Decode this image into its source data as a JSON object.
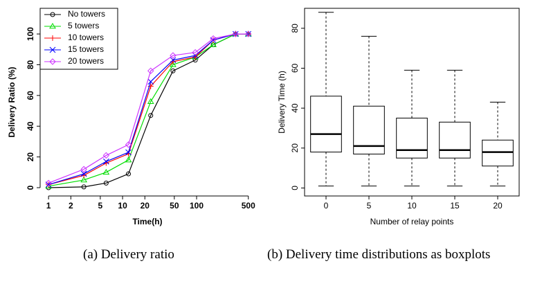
{
  "chart_data": [
    {
      "type": "line",
      "x_label": "Time(h)",
      "y_label": "Delivery Ratio (%)",
      "caption": "(a) Delivery ratio",
      "x_log": true,
      "xlim": [
        0.77,
        610
      ],
      "ylim": [
        -5.4,
        116.7
      ],
      "xticks": [
        1,
        2,
        5,
        10,
        20,
        50,
        100,
        500
      ],
      "yticks": [
        0,
        20,
        40,
        60,
        80,
        100
      ],
      "legend": "top-left",
      "x": [
        1,
        3,
        6,
        12,
        24,
        48,
        96,
        168,
        336,
        500
      ],
      "series": [
        {
          "name": "No towers",
          "color": "#000000",
          "marker": "circle",
          "values": [
            0,
            0.5,
            3,
            9,
            47,
            76,
            83,
            93,
            100,
            100
          ]
        },
        {
          "name": "5 towers",
          "color": "#00dd00",
          "marker": "triangle",
          "values": [
            1,
            5,
            10,
            18,
            56,
            80,
            85,
            93,
            100,
            100
          ]
        },
        {
          "name": "10 towers",
          "color": "#ff0000",
          "marker": "plus",
          "values": [
            2,
            8,
            16,
            22,
            66,
            82,
            85,
            96,
            100,
            100
          ]
        },
        {
          "name": "15 towers",
          "color": "#0000ff",
          "marker": "cross",
          "values": [
            2,
            9,
            17,
            23,
            69,
            83,
            86,
            96,
            100,
            100
          ]
        },
        {
          "name": "20 towers",
          "color": "#cc33ff",
          "marker": "diamond",
          "values": [
            3,
            12,
            21,
            28,
            76,
            86,
            88,
            97,
            100,
            100
          ]
        }
      ]
    },
    {
      "type": "box",
      "x_label": "Number of relay points",
      "y_label": "Delivery Time (h)",
      "caption": "(b) Delivery time distributions as boxplots",
      "ylim": [
        -4,
        90
      ],
      "yticks": [
        0,
        20,
        40,
        60,
        80
      ],
      "categories": [
        "0",
        "5",
        "10",
        "15",
        "20"
      ],
      "boxes": [
        {
          "min": 1,
          "q1": 18,
          "median": 27,
          "q3": 46,
          "max": 88
        },
        {
          "min": 1,
          "q1": 17,
          "median": 21,
          "q3": 41,
          "max": 76
        },
        {
          "min": 1,
          "q1": 15,
          "median": 19,
          "q3": 35,
          "max": 59
        },
        {
          "min": 1,
          "q1": 15,
          "median": 19,
          "q3": 33,
          "max": 59
        },
        {
          "min": 1,
          "q1": 11,
          "median": 18,
          "q3": 24,
          "max": 43
        }
      ]
    }
  ]
}
